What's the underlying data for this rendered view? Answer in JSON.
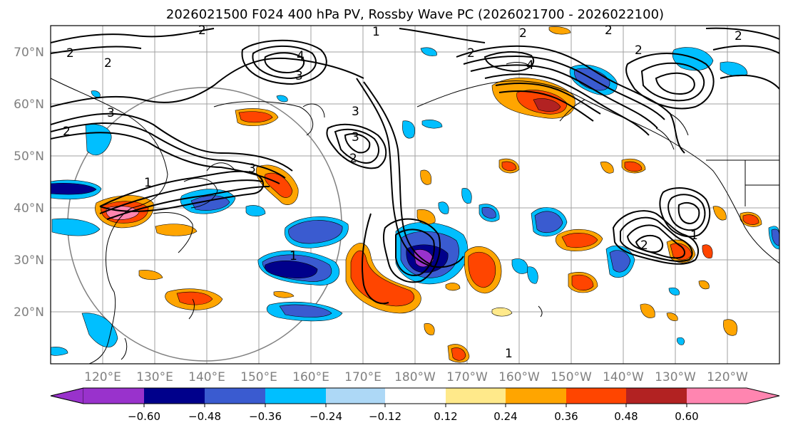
{
  "title": "2026021500 F024 400 hPa PV, Rossby Wave PC (2026021700 - 2026022100)",
  "lat_labels": [
    "70°N",
    "60°N",
    "50°N",
    "40°N",
    "30°N",
    "20°N"
  ],
  "lon_labels": [
    "120°E",
    "130°E",
    "140°E",
    "150°E",
    "160°E",
    "170°E",
    "180°W",
    "170°W",
    "160°W",
    "150°W",
    "140°W",
    "130°W",
    "120°W"
  ],
  "colorbar": {
    "ticks": [
      "−0.60",
      "−0.48",
      "−0.36",
      "−0.24",
      "−0.12",
      "0.12",
      "0.24",
      "0.36",
      "0.48",
      "0.60"
    ],
    "colors": [
      "#9932cc",
      "#00008b",
      "#3a5bd0",
      "#00bfff",
      "#add8f6",
      "#ffffff",
      "#ffe98a",
      "#ffa500",
      "#ff4500",
      "#b22222",
      "#ff85b0"
    ]
  },
  "contour_labels": [
    "2",
    "1",
    "2",
    "2",
    "4",
    "3",
    "2",
    "3",
    "2",
    "1",
    "3",
    "3",
    "2",
    "4",
    "2",
    "2",
    "2",
    "2",
    "2",
    "3",
    "1",
    "1",
    "1"
  ],
  "colors": {
    "gridline": "#a0a0a0",
    "coast": "#000000",
    "contour": "#000000",
    "axis_label": "#808080"
  }
}
